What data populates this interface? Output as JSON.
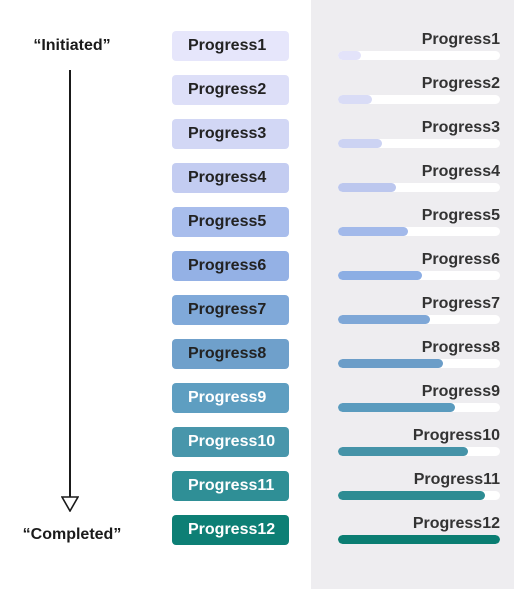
{
  "start_label": "“Initiated”",
  "end_label": "“Completed”",
  "items": [
    {
      "label": "Progress1",
      "progress": 0.14,
      "chip_color": "#e6e6fb",
      "bar_color": "#e3e3fa",
      "text_color": "#222222"
    },
    {
      "label": "Progress2",
      "progress": 0.21,
      "chip_color": "#dddff8",
      "bar_color": "#d9dcf6",
      "text_color": "#222222"
    },
    {
      "label": "Progress3",
      "progress": 0.27,
      "chip_color": "#d2d7f5",
      "bar_color": "#ccd3f3",
      "text_color": "#222222"
    },
    {
      "label": "Progress4",
      "progress": 0.36,
      "chip_color": "#c3ccf1",
      "bar_color": "#bcc7ee",
      "text_color": "#222222"
    },
    {
      "label": "Progress5",
      "progress": 0.43,
      "chip_color": "#a8bdec",
      "bar_color": "#a2b9ea",
      "text_color": "#222222"
    },
    {
      "label": "Progress6",
      "progress": 0.52,
      "chip_color": "#94b1e5",
      "bar_color": "#8caee4",
      "text_color": "#222222"
    },
    {
      "label": "Progress7",
      "progress": 0.57,
      "chip_color": "#80a9d9",
      "bar_color": "#7ea7d7",
      "text_color": "#222222"
    },
    {
      "label": "Progress8",
      "progress": 0.65,
      "chip_color": "#6fa0cb",
      "bar_color": "#6b9dc8",
      "text_color": "#222222"
    },
    {
      "label": "Progress9",
      "progress": 0.72,
      "chip_color": "#5e9ec1",
      "bar_color": "#5a9bbe",
      "text_color": "#ffffff"
    },
    {
      "label": "Progress10",
      "progress": 0.8,
      "chip_color": "#4896ab",
      "bar_color": "#4593a8",
      "text_color": "#ffffff"
    },
    {
      "label": "Progress11",
      "progress": 0.91,
      "chip_color": "#2f8f96",
      "bar_color": "#2d8c93",
      "text_color": "#ffffff"
    },
    {
      "label": "Progress12",
      "progress": 1.0,
      "chip_color": "#0d7f75",
      "bar_color": "#0a7d72",
      "text_color": "#ffffff"
    }
  ]
}
